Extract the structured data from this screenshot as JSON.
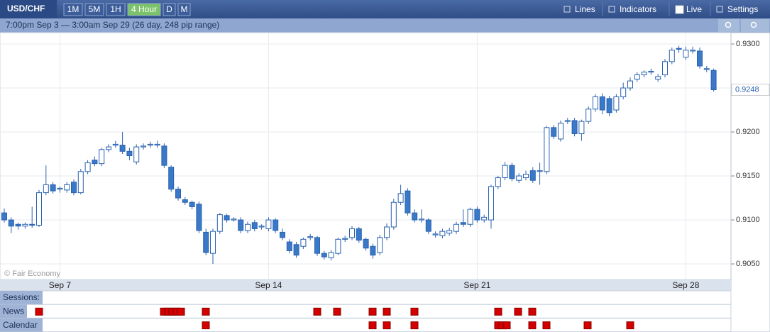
{
  "toolbar": {
    "symbol": "USD/CHF",
    "timeframes": [
      "1M",
      "5M",
      "1H",
      "4 Hour",
      "D",
      "M"
    ],
    "active_timeframe": 3,
    "tools": [
      "Lines",
      "Indicators",
      "Live",
      "Settings"
    ]
  },
  "chart_data": {
    "type": "candlestick",
    "subtitle": "7:00pm Sep 3 — 3:00am Sep 29 (26 day, 248 pip range)",
    "watermark": "© Fair Economy",
    "last_price_label": "0.9248",
    "up_color": "#ffffff",
    "down_color": "#3a78c8",
    "line_color": "#2a62b0",
    "categories": [
      null,
      null,
      null,
      null,
      null,
      null,
      null,
      null,
      "Sep 7",
      null,
      null,
      null,
      null,
      null,
      null,
      null,
      null,
      null,
      null,
      null,
      null,
      null,
      null,
      null,
      null,
      null,
      null,
      null,
      null,
      null,
      null,
      null,
      null,
      null,
      null,
      null,
      null,
      null,
      "Sep 14",
      null,
      null,
      null,
      null,
      null,
      null,
      null,
      null,
      null,
      null,
      null,
      null,
      null,
      null,
      null,
      null,
      null,
      null,
      null,
      null,
      null,
      null,
      null,
      null,
      null,
      null,
      null,
      null,
      null,
      "Sep 21",
      null,
      null,
      null,
      null,
      null,
      null,
      null,
      null,
      null,
      null,
      null,
      null,
      null,
      null,
      null,
      null,
      null,
      null,
      null,
      null,
      null,
      null,
      null,
      null,
      null,
      null,
      null,
      null,
      null,
      "Sep 28",
      null,
      null,
      null,
      null
    ],
    "open": [
      0.9108,
      0.91,
      0.9095,
      0.9093,
      0.9095,
      0.9094,
      0.9131,
      0.914,
      0.9135,
      0.9134,
      0.9143,
      0.9131,
      0.9155,
      0.9168,
      0.9164,
      0.918,
      0.9185,
      0.9185,
      0.9178,
      0.9166,
      0.9183,
      0.9185,
      0.9185,
      0.9184,
      0.916,
      0.9135,
      0.9123,
      0.912,
      0.9118,
      0.9086,
      0.9062,
      0.9087,
      0.9105,
      0.91,
      0.91,
      0.9088,
      0.9097,
      0.9092,
      0.909,
      0.91,
      0.9086,
      0.9075,
      0.9072,
      0.907,
      0.908,
      0.908,
      0.9062,
      0.9057,
      0.9062,
      0.9078,
      0.908,
      0.909,
      0.9078,
      0.907,
      0.9063,
      0.908,
      0.9092,
      0.912,
      0.9133,
      0.9108,
      0.91,
      0.91,
      0.9083,
      0.9082,
      0.9085,
      0.9087,
      0.9097,
      0.9095,
      0.9112,
      0.91,
      0.91,
      0.9138,
      0.9148,
      0.9162,
      0.9145,
      0.9148,
      0.9156,
      0.9155,
      0.9155,
      0.9205,
      0.9192,
      0.9212,
      0.9213,
      0.9198,
      0.9212,
      0.9226,
      0.924,
      0.9238,
      0.9225,
      0.924,
      0.925,
      0.926,
      0.9265,
      0.9268,
      0.926,
      0.9265,
      0.928,
      0.9295,
      0.9285,
      0.9292,
      0.9292,
      0.9271,
      0.927
    ],
    "high": [
      0.9113,
      0.9103,
      0.9097,
      0.9097,
      0.9115,
      0.9134,
      0.9162,
      0.9143,
      0.9138,
      0.9143,
      0.9146,
      0.9158,
      0.9168,
      0.9172,
      0.9182,
      0.9186,
      0.919,
      0.92,
      0.9182,
      0.9186,
      0.9187,
      0.9189,
      0.919,
      0.9187,
      0.9162,
      0.9138,
      0.9126,
      0.9122,
      0.9121,
      0.909,
      0.909,
      0.9108,
      0.9107,
      0.9103,
      0.9103,
      0.9098,
      0.91,
      0.9095,
      0.9103,
      0.9102,
      0.909,
      0.9078,
      0.9075,
      0.908,
      0.9084,
      0.9082,
      0.9065,
      0.9066,
      0.908,
      0.9082,
      0.9093,
      0.9092,
      0.908,
      0.9073,
      0.9083,
      0.9096,
      0.9124,
      0.914,
      0.9136,
      0.9112,
      0.9112,
      0.9102,
      0.9087,
      0.909,
      0.9091,
      0.9098,
      0.9112,
      0.9114,
      0.9115,
      0.9106,
      0.914,
      0.915,
      0.9166,
      0.9165,
      0.9153,
      0.9156,
      0.916,
      0.9165,
      0.9207,
      0.9208,
      0.9213,
      0.9216,
      0.9216,
      0.9214,
      0.9229,
      0.9243,
      0.9244,
      0.9241,
      0.9243,
      0.9256,
      0.9262,
      0.9268,
      0.927,
      0.9272,
      0.9266,
      0.9283,
      0.9296,
      0.9298,
      0.9297,
      0.9297,
      0.9296,
      0.9275,
      0.9272
    ],
    "low": [
      0.9097,
      0.9085,
      0.9089,
      0.909,
      0.9091,
      0.9092,
      0.9128,
      0.913,
      0.9131,
      0.9131,
      0.9128,
      0.9129,
      0.9152,
      0.9161,
      0.9161,
      0.9177,
      0.9182,
      0.9175,
      0.9168,
      0.9163,
      0.918,
      0.9182,
      0.9182,
      0.9159,
      0.9132,
      0.9122,
      0.9117,
      0.9112,
      0.9085,
      0.906,
      0.905,
      0.9084,
      0.9097,
      0.9098,
      0.9085,
      0.9085,
      0.9087,
      0.9089,
      0.9087,
      0.9085,
      0.9077,
      0.9062,
      0.9057,
      0.9067,
      0.9077,
      0.9059,
      0.9055,
      0.9054,
      0.906,
      0.9075,
      0.9077,
      0.9074,
      0.9065,
      0.9056,
      0.906,
      0.9077,
      0.9089,
      0.9117,
      0.9105,
      0.9097,
      0.9097,
      0.9084,
      0.908,
      0.9079,
      0.9082,
      0.9084,
      0.9092,
      0.9092,
      0.9097,
      0.9097,
      0.909,
      0.9135,
      0.9145,
      0.9144,
      0.9142,
      0.9145,
      0.9142,
      0.914,
      0.9152,
      0.9192,
      0.9189,
      0.9209,
      0.9195,
      0.919,
      0.9209,
      0.9223,
      0.922,
      0.9218,
      0.9222,
      0.9237,
      0.9247,
      0.9257,
      0.9262,
      0.9265,
      0.9257,
      0.9262,
      0.9277,
      0.929,
      0.9282,
      0.9289,
      0.9272,
      0.9268,
      0.9246
    ],
    "close": [
      0.91,
      0.9093,
      0.9093,
      0.9095,
      0.9094,
      0.9131,
      0.914,
      0.9133,
      0.9136,
      0.914,
      0.9131,
      0.9155,
      0.9165,
      0.9164,
      0.918,
      0.9183,
      0.9186,
      0.9178,
      0.9173,
      0.9183,
      0.9184,
      0.9186,
      0.9186,
      0.9162,
      0.9135,
      0.9125,
      0.912,
      0.9115,
      0.9088,
      0.9063,
      0.9087,
      0.9106,
      0.91,
      0.9101,
      0.9088,
      0.9095,
      0.909,
      0.9093,
      0.91,
      0.9088,
      0.908,
      0.9065,
      0.906,
      0.9078,
      0.9081,
      0.9062,
      0.9058,
      0.9063,
      0.9078,
      0.9079,
      0.909,
      0.9077,
      0.9068,
      0.906,
      0.908,
      0.9092,
      0.912,
      0.913,
      0.9108,
      0.91,
      0.9101,
      0.9087,
      0.9084,
      0.9087,
      0.9088,
      0.9095,
      0.9095,
      0.9112,
      0.91,
      0.9103,
      0.9138,
      0.9148,
      0.9162,
      0.9147,
      0.915,
      0.9152,
      0.9145,
      0.9156,
      0.9205,
      0.9195,
      0.921,
      0.9213,
      0.9198,
      0.9212,
      0.9226,
      0.924,
      0.9225,
      0.9222,
      0.924,
      0.925,
      0.9258,
      0.9265,
      0.9268,
      0.9269,
      0.9263,
      0.928,
      0.9293,
      0.9294,
      0.9293,
      0.9293,
      0.9275,
      0.9272,
      0.9248
    ],
    "ylim": [
      0.90331,
      0.93113
    ],
    "yticks": [
      {
        "value": 0.905,
        "label": "0.9050"
      },
      {
        "value": 0.91,
        "label": "0.9100"
      },
      {
        "value": 0.915,
        "label": "0.9150"
      },
      {
        "value": 0.92,
        "label": "0.9200"
      },
      {
        "value": 0.925,
        "label": "0.9250"
      },
      {
        "value": 0.93,
        "label": "0.9300"
      }
    ],
    "grid": true
  },
  "event_rows": [
    "Sessions:",
    "News",
    "Calendar"
  ]
}
